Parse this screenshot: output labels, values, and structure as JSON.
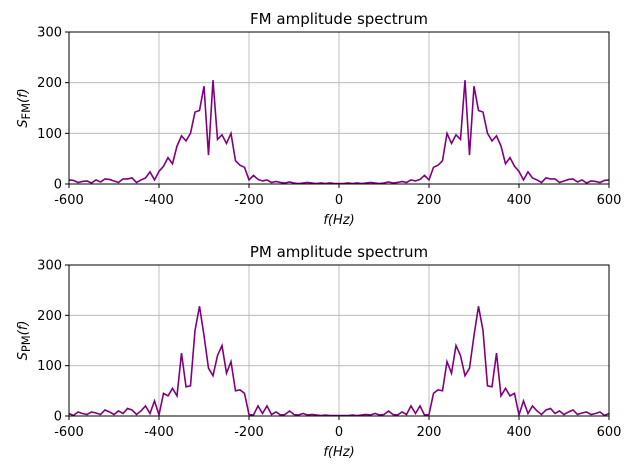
{
  "chart_data": [
    {
      "type": "line",
      "title": "FM amplitude spectrum",
      "xlabel": "f(Hz)",
      "ylabel": {
        "symbol": "S",
        "subscript": "FM",
        "arg": "(f)"
      },
      "x": [
        -600,
        -590,
        -580,
        -570,
        -560,
        -550,
        -540,
        -530,
        -520,
        -510,
        -500,
        -490,
        -480,
        -470,
        -460,
        -450,
        -440,
        -430,
        -420,
        -410,
        -400,
        -390,
        -380,
        -370,
        -360,
        -350,
        -340,
        -330,
        -320,
        -310,
        -300,
        -290,
        -280,
        -270,
        -260,
        -250,
        -240,
        -230,
        -220,
        -210,
        -200,
        -190,
        -180,
        -170,
        -160,
        -150,
        -140,
        -130,
        -120,
        -110,
        -100,
        -90,
        -80,
        -70,
        -60,
        -50,
        -40,
        -30,
        -20,
        -10,
        0,
        10,
        20,
        30,
        40,
        50,
        60,
        70,
        80,
        90,
        100,
        110,
        120,
        130,
        140,
        150,
        160,
        170,
        180,
        190,
        200,
        210,
        220,
        230,
        240,
        250,
        260,
        270,
        280,
        290,
        300,
        310,
        320,
        330,
        340,
        350,
        360,
        370,
        380,
        390,
        400,
        410,
        420,
        430,
        440,
        450,
        460,
        470,
        480,
        490,
        500,
        510,
        520,
        530,
        540,
        550,
        560,
        570,
        580,
        590,
        600
      ],
      "series": [
        {
          "name": "FM",
          "color": "#800080",
          "values": [
            8,
            7,
            3,
            5,
            6,
            2,
            8,
            4,
            10,
            9,
            6,
            3,
            10,
            10,
            12,
            3,
            8,
            12,
            24,
            8,
            25,
            35,
            52,
            40,
            75,
            95,
            85,
            100,
            142,
            145,
            193,
            57,
            205,
            88,
            97,
            80,
            100,
            46,
            37,
            33,
            8,
            17,
            9,
            6,
            8,
            3,
            5,
            3,
            2,
            4,
            2,
            1,
            2,
            3,
            2,
            1,
            2,
            1,
            2,
            1,
            1,
            1,
            2,
            1,
            2,
            1,
            2,
            3,
            2,
            1,
            2,
            4,
            2,
            3,
            5,
            3,
            8,
            6,
            9,
            17,
            8,
            33,
            37,
            46,
            100,
            80,
            97,
            88,
            205,
            57,
            193,
            145,
            142,
            100,
            85,
            95,
            75,
            40,
            52,
            35,
            25,
            8,
            24,
            12,
            8,
            3,
            12,
            10,
            10,
            3,
            6,
            9,
            10,
            4,
            8,
            2,
            6,
            5,
            3,
            7,
            8
          ]
        }
      ],
      "xlim": [
        -600,
        600
      ],
      "ylim": [
        0,
        300
      ],
      "xticks": [
        -600,
        -400,
        -200,
        0,
        200,
        400,
        600
      ],
      "yticks": [
        0,
        100,
        200,
        300
      ],
      "grid": true
    },
    {
      "type": "line",
      "title": "PM amplitude spectrum",
      "xlabel": "f(Hz)",
      "ylabel": {
        "symbol": "S",
        "subscript": "PM",
        "arg": "(f)"
      },
      "x": [
        -600,
        -590,
        -580,
        -570,
        -560,
        -550,
        -540,
        -530,
        -520,
        -510,
        -500,
        -490,
        -480,
        -470,
        -460,
        -450,
        -440,
        -430,
        -420,
        -410,
        -400,
        -390,
        -380,
        -370,
        -360,
        -350,
        -340,
        -330,
        -320,
        -310,
        -300,
        -290,
        -280,
        -270,
        -260,
        -250,
        -240,
        -230,
        -220,
        -210,
        -200,
        -190,
        -180,
        -170,
        -160,
        -150,
        -140,
        -130,
        -120,
        -110,
        -100,
        -90,
        -80,
        -70,
        -60,
        -50,
        -40,
        -30,
        -20,
        -10,
        0,
        10,
        20,
        30,
        40,
        50,
        60,
        70,
        80,
        90,
        100,
        110,
        120,
        130,
        140,
        150,
        160,
        170,
        180,
        190,
        200,
        210,
        220,
        230,
        240,
        250,
        260,
        270,
        280,
        290,
        300,
        310,
        320,
        330,
        340,
        350,
        360,
        370,
        380,
        390,
        400,
        410,
        420,
        430,
        440,
        450,
        460,
        470,
        480,
        490,
        500,
        510,
        520,
        530,
        540,
        550,
        560,
        570,
        580,
        590,
        600
      ],
      "series": [
        {
          "name": "PM",
          "color": "#800080",
          "values": [
            5,
            1,
            8,
            5,
            3,
            8,
            6,
            3,
            12,
            8,
            3,
            10,
            5,
            15,
            12,
            3,
            10,
            20,
            5,
            30,
            2,
            45,
            40,
            55,
            40,
            125,
            58,
            60,
            170,
            218,
            160,
            95,
            80,
            120,
            140,
            85,
            108,
            50,
            52,
            45,
            3,
            2,
            20,
            5,
            20,
            3,
            8,
            2,
            3,
            10,
            3,
            2,
            5,
            2,
            3,
            2,
            1,
            2,
            1,
            1,
            1,
            1,
            1,
            2,
            1,
            2,
            3,
            2,
            5,
            2,
            3,
            10,
            3,
            2,
            8,
            3,
            20,
            5,
            20,
            2,
            3,
            45,
            52,
            50,
            108,
            85,
            140,
            120,
            80,
            95,
            160,
            218,
            170,
            60,
            58,
            125,
            40,
            55,
            40,
            45,
            2,
            30,
            5,
            20,
            10,
            3,
            12,
            15,
            5,
            10,
            3,
            8,
            12,
            3,
            6,
            8,
            3,
            5,
            8,
            1,
            5
          ]
        }
      ],
      "xlim": [
        -600,
        600
      ],
      "ylim": [
        0,
        300
      ],
      "xticks": [
        -600,
        -400,
        -200,
        0,
        200,
        400,
        600
      ],
      "yticks": [
        0,
        100,
        200,
        300
      ],
      "grid": true
    }
  ]
}
